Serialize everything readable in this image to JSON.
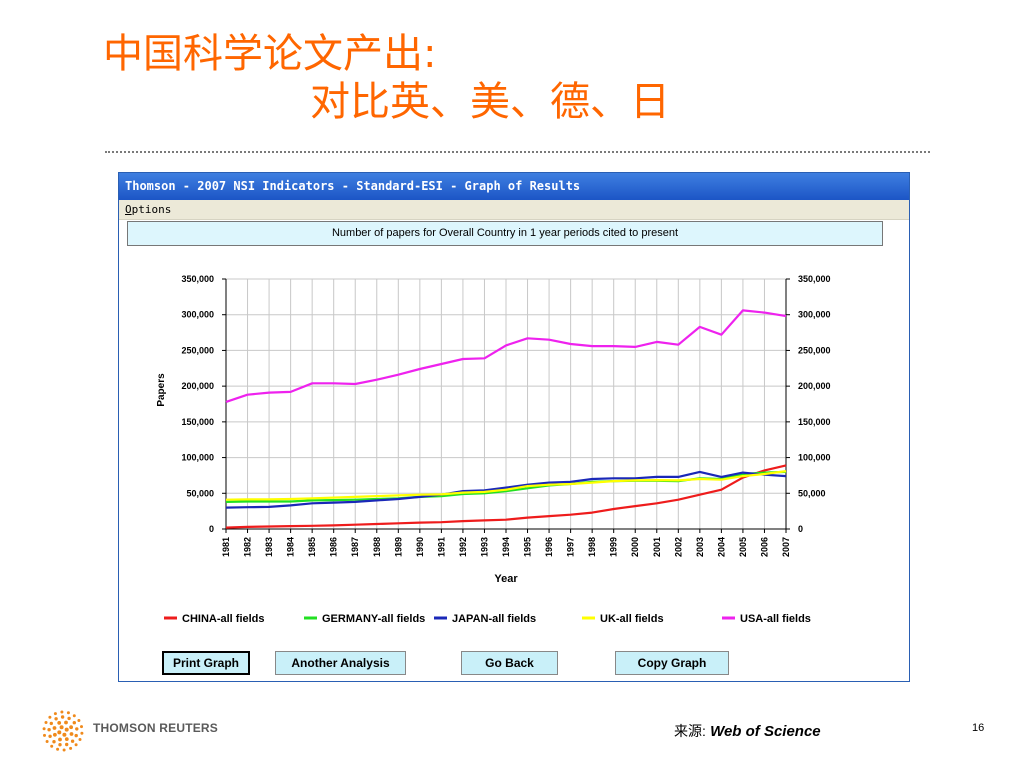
{
  "slide": {
    "title_line1": "中国科学论文产出:",
    "title_line2": "对比英、美、德、日",
    "brand": "THOMSON REUTERS",
    "source_label": "来源:",
    "source_value": "Web of Science",
    "page_number": "16"
  },
  "window": {
    "title": "Thomson - 2007 NSI Indicators - Standard-ESI - Graph of Results",
    "menu_first": "O",
    "menu_rest": "ptions",
    "buttons": [
      "Print Graph",
      "Another Analysis",
      "Go Back",
      "Copy Graph"
    ]
  },
  "chart_data": {
    "type": "line",
    "title": "Number of papers for Overall Country in 1 year periods cited to present",
    "xlabel": "Year",
    "ylabel": "Papers",
    "ylim": [
      0,
      350000
    ],
    "yticks": [
      0,
      50000,
      100000,
      150000,
      200000,
      250000,
      300000,
      350000
    ],
    "ytick_labels": [
      "0",
      "50,000",
      "100,000",
      "150,000",
      "200,000",
      "250,000",
      "300,000",
      "350,000"
    ],
    "grid": true,
    "legend_position": "bottom",
    "categories": [
      "1981",
      "1982",
      "1983",
      "1984",
      "1985",
      "1986",
      "1987",
      "1988",
      "1989",
      "1990",
      "1991",
      "1992",
      "1993",
      "1994",
      "1995",
      "1996",
      "1997",
      "1998",
      "1999",
      "2000",
      "2001",
      "2002",
      "2003",
      "2004",
      "2005",
      "2006",
      "2007"
    ],
    "series": [
      {
        "name": "CHINA-all fields",
        "color": "#ee1c1c",
        "values": [
          2000,
          3000,
          3500,
          4000,
          4500,
          5000,
          6000,
          7000,
          8000,
          9000,
          9500,
          11000,
          12000,
          13000,
          16000,
          18000,
          20000,
          23000,
          28000,
          32000,
          36000,
          41000,
          48000,
          55000,
          72000,
          82000,
          89000
        ]
      },
      {
        "name": "GERMANY-all fields",
        "color": "#22e022",
        "values": [
          38000,
          38500,
          38500,
          38500,
          40000,
          40500,
          41000,
          42000,
          43000,
          45000,
          46000,
          49000,
          50000,
          53000,
          57000,
          61000,
          63000,
          66000,
          67000,
          67500,
          67500,
          67000,
          71000,
          70000,
          77000,
          79000,
          80000
        ]
      },
      {
        "name": "JAPAN-all fields",
        "color": "#1a28b8",
        "values": [
          30000,
          30500,
          31000,
          33000,
          36000,
          37000,
          38000,
          40000,
          42000,
          45000,
          48000,
          53000,
          54000,
          58000,
          62000,
          65000,
          66000,
          70000,
          71000,
          71000,
          73000,
          73000,
          80000,
          73000,
          79000,
          76000,
          74000
        ]
      },
      {
        "name": "UK-all fields",
        "color": "#ffff00",
        "values": [
          41000,
          41500,
          41500,
          42000,
          43000,
          44000,
          45000,
          46000,
          47000,
          48000,
          48500,
          51000,
          52000,
          55000,
          60000,
          62000,
          63000,
          65000,
          67000,
          68000,
          68500,
          68000,
          70000,
          69000,
          74000,
          77000,
          81000
        ]
      },
      {
        "name": "USA-all fields",
        "color": "#ee22ee",
        "values": [
          178000,
          188000,
          191000,
          192000,
          204000,
          204000,
          203000,
          209000,
          216000,
          224000,
          231000,
          238000,
          239000,
          257000,
          267000,
          265000,
          259000,
          256000,
          256000,
          255000,
          262000,
          258000,
          283000,
          272000,
          306000,
          303000,
          298000
        ]
      }
    ]
  }
}
